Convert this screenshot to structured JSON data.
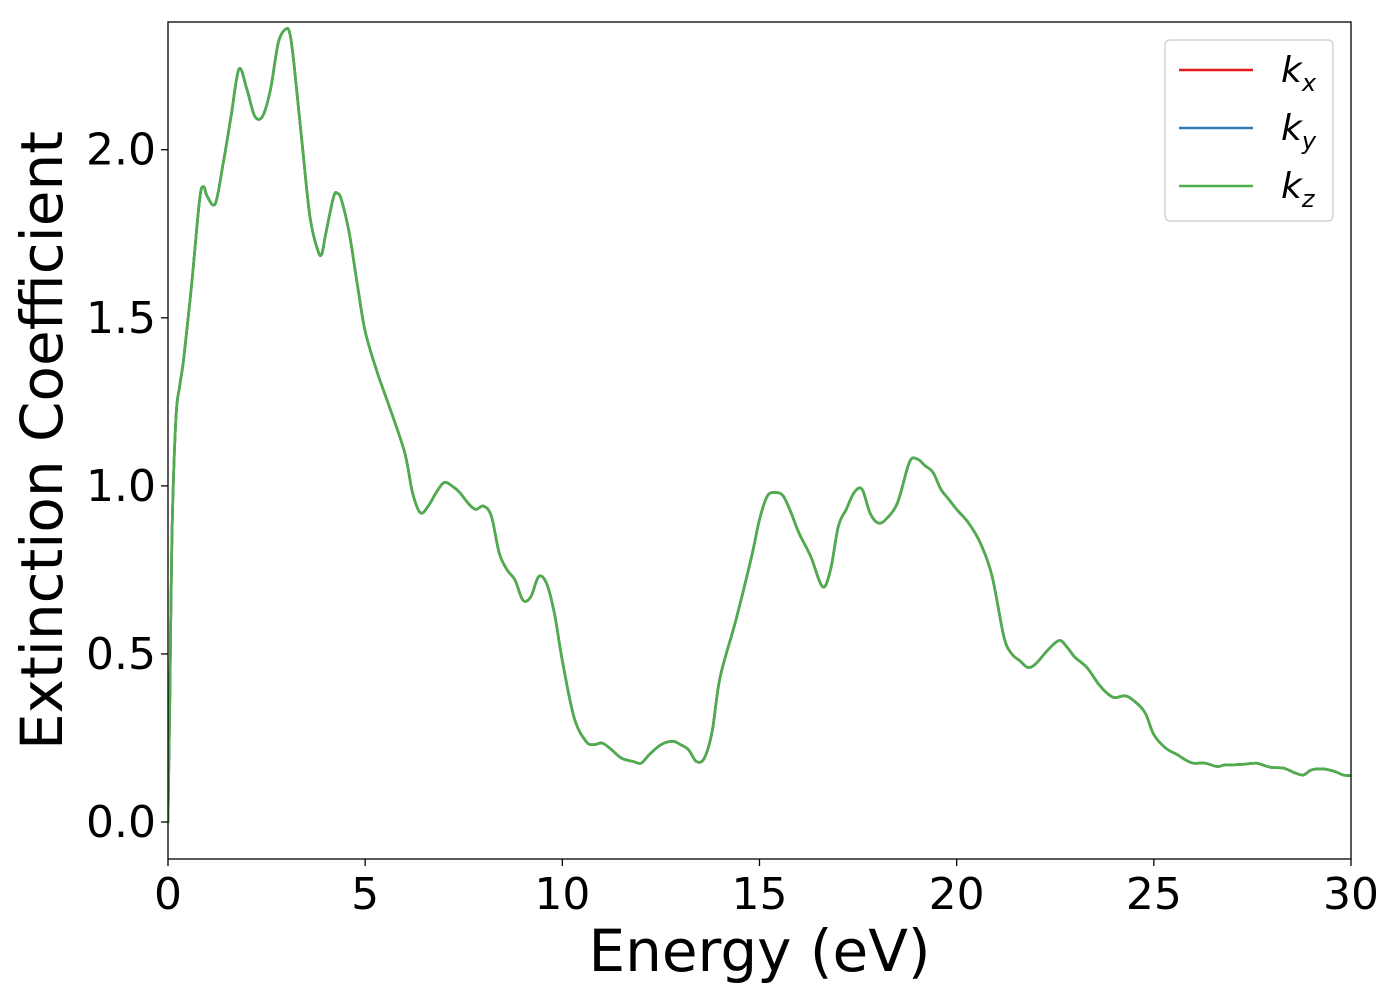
{
  "chart_data": {
    "type": "line",
    "title": "",
    "xlabel": "Energy (eV)",
    "ylabel": "Extinction Coefficient",
    "xlim": [
      0,
      30
    ],
    "ylim": [
      -0.11,
      2.38
    ],
    "x_ticks": [
      0,
      5,
      10,
      15,
      20,
      25,
      30
    ],
    "y_ticks": [
      0.0,
      0.5,
      1.0,
      1.5,
      2.0
    ],
    "x_tick_labels": [
      "0",
      "5",
      "10",
      "15",
      "20",
      "25",
      "30"
    ],
    "y_tick_labels": [
      "0.0",
      "0.5",
      "1.0",
      "1.5",
      "2.0"
    ],
    "grid": false,
    "legend_position": "top-right",
    "x": [
      0,
      0.05,
      0.1,
      0.2,
      0.3,
      0.4,
      0.6,
      0.8,
      0.9,
      1.0,
      1.2,
      1.4,
      1.6,
      1.8,
      2.0,
      2.2,
      2.4,
      2.6,
      2.8,
      3.0,
      3.1,
      3.2,
      3.4,
      3.6,
      3.8,
      3.9,
      4.0,
      4.2,
      4.3,
      4.4,
      4.6,
      4.8,
      5.0,
      5.3,
      5.6,
      6.0,
      6.2,
      6.4,
      6.6,
      6.8,
      7.0,
      7.2,
      7.4,
      7.6,
      7.8,
      8.0,
      8.2,
      8.4,
      8.6,
      8.8,
      9.0,
      9.2,
      9.4,
      9.6,
      9.8,
      10.0,
      10.3,
      10.6,
      10.8,
      11.0,
      11.2,
      11.5,
      11.8,
      12.0,
      12.2,
      12.5,
      12.8,
      13.0,
      13.2,
      13.4,
      13.6,
      13.8,
      14.0,
      14.4,
      14.8,
      15.0,
      15.2,
      15.4,
      15.6,
      15.8,
      16.0,
      16.3,
      16.6,
      16.8,
      17.0,
      17.2,
      17.4,
      17.6,
      17.8,
      18.0,
      18.2,
      18.5,
      18.8,
      19.0,
      19.2,
      19.4,
      19.6,
      19.8,
      20.0,
      20.3,
      20.6,
      20.9,
      21.2,
      21.4,
      21.6,
      21.8,
      22.0,
      22.3,
      22.6,
      22.8,
      23.0,
      23.3,
      23.6,
      23.8,
      24.0,
      24.3,
      24.6,
      24.8,
      25.0,
      25.3,
      25.6,
      25.8,
      26.0,
      26.3,
      26.6,
      26.8,
      27.0,
      27.3,
      27.6,
      27.8,
      28.0,
      28.3,
      28.6,
      28.8,
      29.0,
      29.3,
      29.6,
      29.8,
      30.0
    ],
    "series": [
      {
        "name": "k_x",
        "name_base": "k",
        "name_sub": "x",
        "color": "#e41a1c",
        "values": [
          0.0,
          0.4,
          0.85,
          1.2,
          1.3,
          1.38,
          1.6,
          1.85,
          1.89,
          1.86,
          1.84,
          1.96,
          2.1,
          2.24,
          2.18,
          2.1,
          2.1,
          2.18,
          2.32,
          2.36,
          2.34,
          2.25,
          2.02,
          1.8,
          1.7,
          1.69,
          1.75,
          1.86,
          1.87,
          1.85,
          1.75,
          1.6,
          1.46,
          1.34,
          1.24,
          1.1,
          0.98,
          0.92,
          0.94,
          0.98,
          1.01,
          1.0,
          0.98,
          0.95,
          0.93,
          0.94,
          0.91,
          0.8,
          0.75,
          0.72,
          0.66,
          0.67,
          0.73,
          0.71,
          0.62,
          0.48,
          0.31,
          0.24,
          0.23,
          0.235,
          0.22,
          0.19,
          0.18,
          0.175,
          0.2,
          0.23,
          0.24,
          0.23,
          0.215,
          0.18,
          0.19,
          0.27,
          0.43,
          0.6,
          0.79,
          0.9,
          0.97,
          0.98,
          0.97,
          0.92,
          0.86,
          0.79,
          0.7,
          0.75,
          0.88,
          0.93,
          0.98,
          0.99,
          0.92,
          0.89,
          0.9,
          0.95,
          1.07,
          1.08,
          1.06,
          1.04,
          0.99,
          0.96,
          0.93,
          0.89,
          0.83,
          0.73,
          0.55,
          0.5,
          0.48,
          0.46,
          0.47,
          0.51,
          0.54,
          0.52,
          0.49,
          0.46,
          0.41,
          0.385,
          0.37,
          0.375,
          0.35,
          0.32,
          0.26,
          0.22,
          0.2,
          0.185,
          0.175,
          0.175,
          0.165,
          0.17,
          0.17,
          0.172,
          0.175,
          0.168,
          0.162,
          0.16,
          0.145,
          0.14,
          0.155,
          0.158,
          0.15,
          0.14,
          0.138
        ]
      },
      {
        "name": "k_y",
        "name_base": "k",
        "name_sub": "y",
        "color": "#377eb8",
        "values": [
          0.0,
          0.4,
          0.85,
          1.2,
          1.3,
          1.38,
          1.6,
          1.85,
          1.89,
          1.86,
          1.84,
          1.96,
          2.1,
          2.24,
          2.18,
          2.1,
          2.1,
          2.18,
          2.32,
          2.36,
          2.34,
          2.25,
          2.02,
          1.8,
          1.7,
          1.69,
          1.75,
          1.86,
          1.87,
          1.85,
          1.75,
          1.6,
          1.46,
          1.34,
          1.24,
          1.1,
          0.98,
          0.92,
          0.94,
          0.98,
          1.01,
          1.0,
          0.98,
          0.95,
          0.93,
          0.94,
          0.91,
          0.8,
          0.75,
          0.72,
          0.66,
          0.67,
          0.73,
          0.71,
          0.62,
          0.48,
          0.31,
          0.24,
          0.23,
          0.235,
          0.22,
          0.19,
          0.18,
          0.175,
          0.2,
          0.23,
          0.24,
          0.23,
          0.215,
          0.18,
          0.19,
          0.27,
          0.43,
          0.6,
          0.79,
          0.9,
          0.97,
          0.98,
          0.97,
          0.92,
          0.86,
          0.79,
          0.7,
          0.75,
          0.88,
          0.93,
          0.98,
          0.99,
          0.92,
          0.89,
          0.9,
          0.95,
          1.07,
          1.08,
          1.06,
          1.04,
          0.99,
          0.96,
          0.93,
          0.89,
          0.83,
          0.73,
          0.55,
          0.5,
          0.48,
          0.46,
          0.47,
          0.51,
          0.54,
          0.52,
          0.49,
          0.46,
          0.41,
          0.385,
          0.37,
          0.375,
          0.35,
          0.32,
          0.26,
          0.22,
          0.2,
          0.185,
          0.175,
          0.175,
          0.165,
          0.17,
          0.17,
          0.172,
          0.175,
          0.168,
          0.162,
          0.16,
          0.145,
          0.14,
          0.155,
          0.158,
          0.15,
          0.14,
          0.138
        ]
      },
      {
        "name": "k_z",
        "name_base": "k",
        "name_sub": "z",
        "color": "#4daf4a",
        "values": [
          0.0,
          0.4,
          0.85,
          1.2,
          1.3,
          1.38,
          1.6,
          1.85,
          1.89,
          1.86,
          1.84,
          1.96,
          2.1,
          2.24,
          2.18,
          2.1,
          2.1,
          2.18,
          2.32,
          2.36,
          2.34,
          2.25,
          2.02,
          1.8,
          1.7,
          1.69,
          1.75,
          1.86,
          1.87,
          1.85,
          1.75,
          1.6,
          1.46,
          1.34,
          1.24,
          1.1,
          0.98,
          0.92,
          0.94,
          0.98,
          1.01,
          1.0,
          0.98,
          0.95,
          0.93,
          0.94,
          0.91,
          0.8,
          0.75,
          0.72,
          0.66,
          0.67,
          0.73,
          0.71,
          0.62,
          0.48,
          0.31,
          0.24,
          0.23,
          0.235,
          0.22,
          0.19,
          0.18,
          0.175,
          0.2,
          0.23,
          0.24,
          0.23,
          0.215,
          0.18,
          0.19,
          0.27,
          0.43,
          0.6,
          0.79,
          0.9,
          0.97,
          0.98,
          0.97,
          0.92,
          0.86,
          0.79,
          0.7,
          0.75,
          0.88,
          0.93,
          0.98,
          0.99,
          0.92,
          0.89,
          0.9,
          0.95,
          1.07,
          1.08,
          1.06,
          1.04,
          0.99,
          0.96,
          0.93,
          0.89,
          0.83,
          0.73,
          0.55,
          0.5,
          0.48,
          0.46,
          0.47,
          0.51,
          0.54,
          0.52,
          0.49,
          0.46,
          0.41,
          0.385,
          0.37,
          0.375,
          0.35,
          0.32,
          0.26,
          0.22,
          0.2,
          0.185,
          0.175,
          0.175,
          0.165,
          0.17,
          0.17,
          0.172,
          0.175,
          0.168,
          0.162,
          0.16,
          0.145,
          0.14,
          0.155,
          0.158,
          0.15,
          0.14,
          0.138
        ]
      }
    ]
  }
}
